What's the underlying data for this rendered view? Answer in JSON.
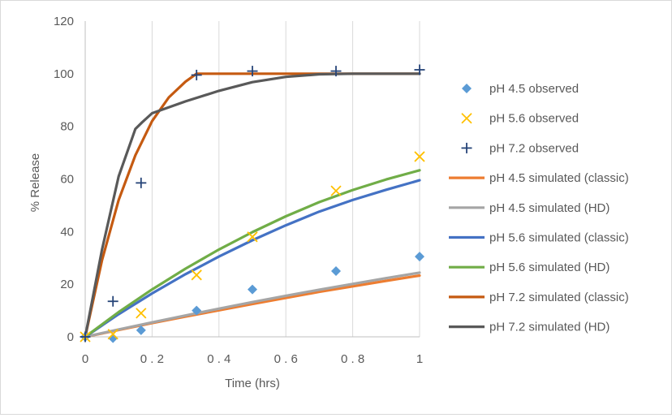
{
  "chart_data": {
    "type": "scatter",
    "title": "",
    "xlabel": "Time (hrs)",
    "ylabel": "% Release",
    "xlim": [
      0,
      1
    ],
    "ylim": [
      0,
      120
    ],
    "x_ticks": [
      0,
      0.2,
      0.4,
      0.6,
      0.8,
      1
    ],
    "x_tick_labels": [
      "0",
      "0 . 2",
      "0 . 4",
      "0 . 6",
      "0 . 8",
      "1"
    ],
    "y_ticks": [
      0,
      20,
      40,
      60,
      80,
      100,
      120
    ],
    "y_tick_labels": [
      "0",
      "20",
      "40",
      "60",
      "80",
      "100",
      "120"
    ],
    "grid": "vertical",
    "legend_position": "right",
    "series": [
      {
        "name": "pH 4.5 observed",
        "kind": "scatter",
        "marker": "diamond",
        "color": "#5b9bd5",
        "points": [
          [
            0,
            0
          ],
          [
            0.083,
            -0.5
          ],
          [
            0.167,
            2.5
          ],
          [
            0.333,
            10
          ],
          [
            0.5,
            18
          ],
          [
            0.75,
            25
          ],
          [
            1,
            30.5
          ]
        ]
      },
      {
        "name": "pH 5.6 observed",
        "kind": "scatter",
        "marker": "x",
        "color": "#ffc000",
        "points": [
          [
            0,
            0
          ],
          [
            0.083,
            1
          ],
          [
            0.167,
            9
          ],
          [
            0.333,
            23.5
          ],
          [
            0.5,
            38
          ],
          [
            0.75,
            55.5
          ],
          [
            1,
            68.5
          ]
        ]
      },
      {
        "name": "pH 7.2 observed",
        "kind": "scatter",
        "marker": "plus",
        "color": "#264478",
        "points": [
          [
            0,
            0
          ],
          [
            0.083,
            13.5
          ],
          [
            0.167,
            58.5
          ],
          [
            0.333,
            99.5
          ],
          [
            0.5,
            101
          ],
          [
            0.75,
            101
          ],
          [
            1,
            101.5
          ]
        ]
      },
      {
        "name": "pH 4.5 simulated (classic)",
        "kind": "line",
        "color": "#ed7d31",
        "points": [
          [
            0,
            0
          ],
          [
            0.1,
            2.6
          ],
          [
            0.2,
            5.2
          ],
          [
            0.3,
            7.7
          ],
          [
            0.4,
            10.1
          ],
          [
            0.5,
            12.5
          ],
          [
            0.6,
            14.8
          ],
          [
            0.7,
            17.1
          ],
          [
            0.8,
            19.2
          ],
          [
            0.9,
            21.3
          ],
          [
            1,
            23.3
          ]
        ]
      },
      {
        "name": "pH 4.5 simulated (HD)",
        "kind": "line",
        "color": "#a5a5a5",
        "points": [
          [
            0,
            0
          ],
          [
            0.1,
            2.8
          ],
          [
            0.2,
            5.5
          ],
          [
            0.3,
            8.1
          ],
          [
            0.4,
            10.7
          ],
          [
            0.5,
            13.2
          ],
          [
            0.6,
            15.6
          ],
          [
            0.7,
            17.9
          ],
          [
            0.8,
            20.1
          ],
          [
            0.9,
            22.3
          ],
          [
            1,
            24.4
          ]
        ]
      },
      {
        "name": "pH 5.6 simulated (classic)",
        "kind": "line",
        "color": "#4472c4",
        "points": [
          [
            0,
            0
          ],
          [
            0.1,
            8.6
          ],
          [
            0.2,
            16.5
          ],
          [
            0.3,
            23.8
          ],
          [
            0.4,
            30.5
          ],
          [
            0.5,
            36.7
          ],
          [
            0.6,
            42.4
          ],
          [
            0.7,
            47.6
          ],
          [
            0.8,
            52.0
          ],
          [
            0.9,
            55.9
          ],
          [
            1,
            59.5
          ]
        ]
      },
      {
        "name": "pH 5.6 simulated (HD)",
        "kind": "line",
        "color": "#70ad47",
        "points": [
          [
            0,
            0
          ],
          [
            0.1,
            9.4
          ],
          [
            0.2,
            18.0
          ],
          [
            0.3,
            25.9
          ],
          [
            0.4,
            33.2
          ],
          [
            0.5,
            39.8
          ],
          [
            0.6,
            45.8
          ],
          [
            0.7,
            51.2
          ],
          [
            0.8,
            55.8
          ],
          [
            0.9,
            59.8
          ],
          [
            1,
            63.3
          ]
        ]
      },
      {
        "name": "pH 7.2 simulated (classic)",
        "kind": "line",
        "color": "#c55a11",
        "points": [
          [
            0,
            0
          ],
          [
            0.05,
            29
          ],
          [
            0.1,
            52
          ],
          [
            0.15,
            69
          ],
          [
            0.2,
            82
          ],
          [
            0.25,
            91
          ],
          [
            0.3,
            97
          ],
          [
            0.333,
            100
          ],
          [
            0.4,
            100
          ],
          [
            0.6,
            100
          ],
          [
            0.8,
            100
          ],
          [
            1,
            100
          ]
        ]
      },
      {
        "name": "pH 7.2 simulated (HD)",
        "kind": "line",
        "color": "#595959",
        "points": [
          [
            0,
            0
          ],
          [
            0.05,
            33
          ],
          [
            0.1,
            61
          ],
          [
            0.15,
            79
          ],
          [
            0.17,
            81.5
          ],
          [
            0.2,
            85
          ],
          [
            0.3,
            89.5
          ],
          [
            0.4,
            93.5
          ],
          [
            0.5,
            96.8
          ],
          [
            0.6,
            98.8
          ],
          [
            0.7,
            99.8
          ],
          [
            0.8,
            100
          ],
          [
            0.9,
            100
          ],
          [
            1,
            100
          ]
        ]
      }
    ]
  }
}
